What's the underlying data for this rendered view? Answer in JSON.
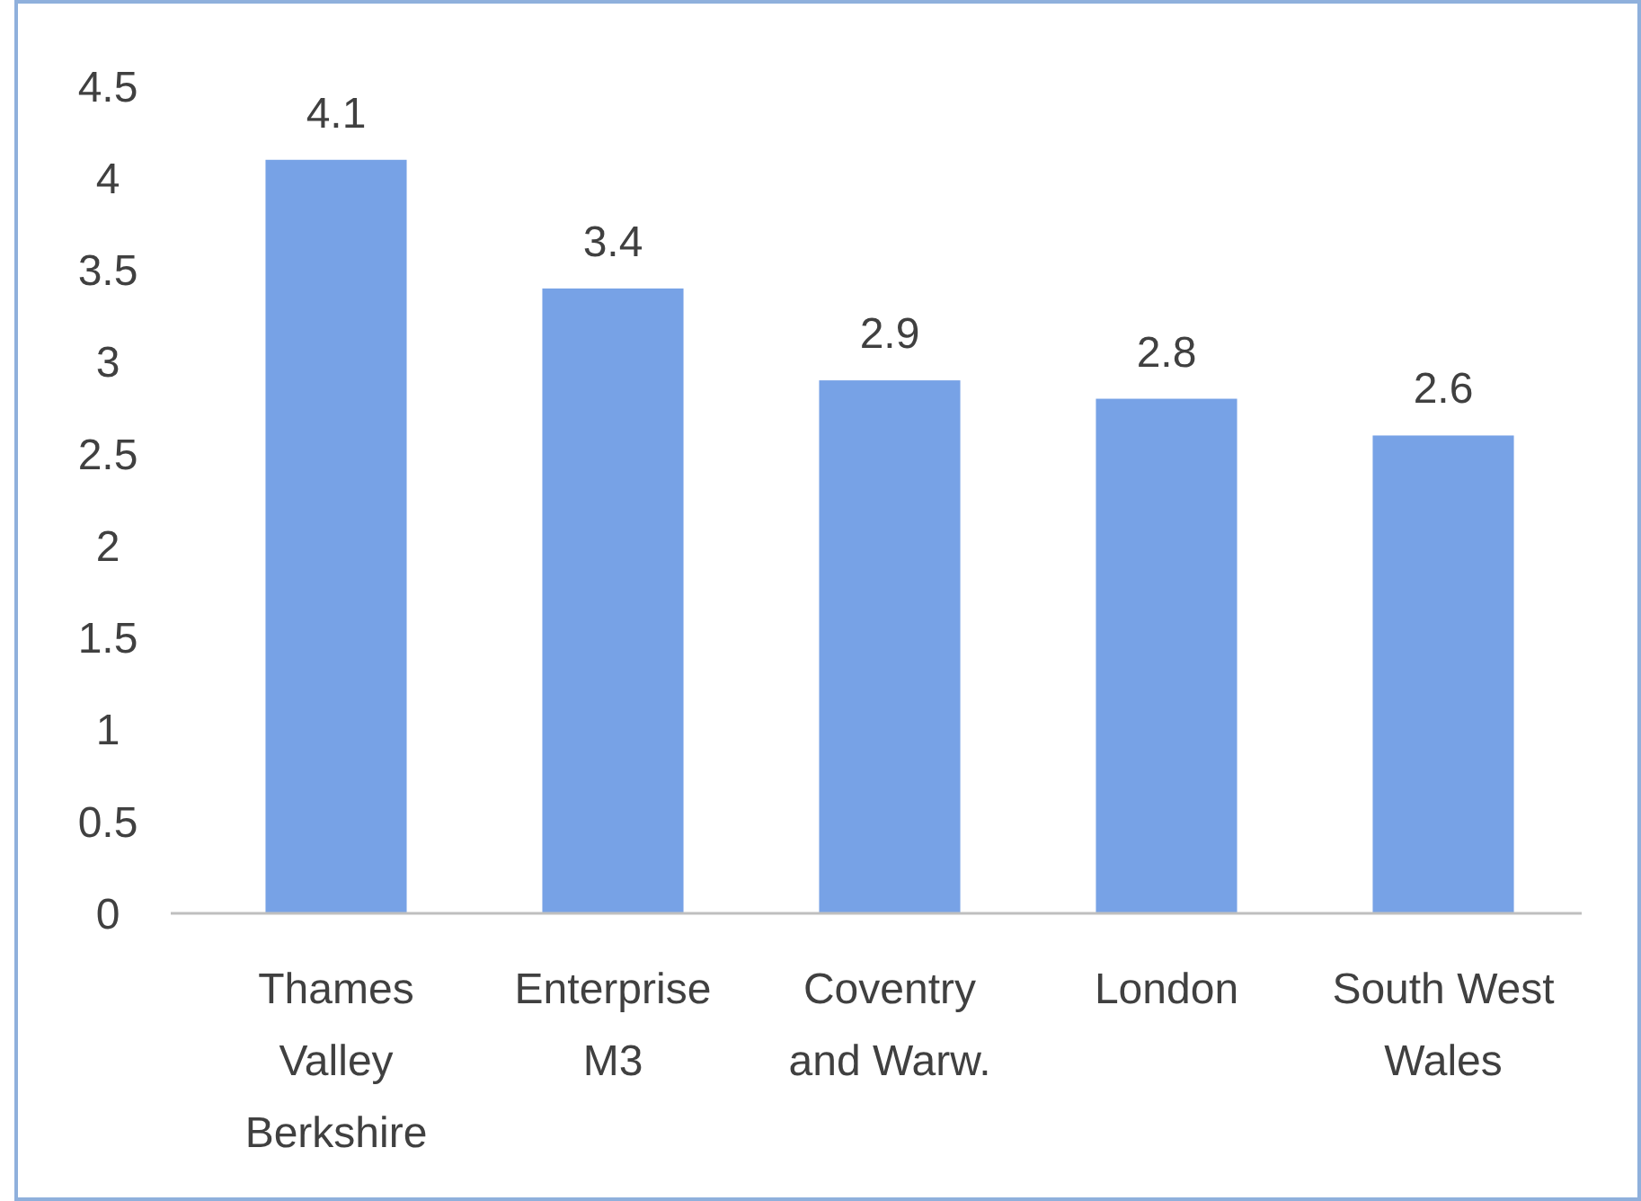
{
  "chart_data": {
    "type": "bar",
    "categories": [
      "Thames Valley Berkshire",
      "Enterprise M3",
      "Coventry and Warw.",
      "London",
      "South West Wales"
    ],
    "values": [
      4.1,
      3.4,
      2.9,
      2.8,
      2.6
    ],
    "color": "#77a2e6",
    "ylim": [
      0,
      4.5
    ],
    "yticks": [
      0,
      0.5,
      1,
      1.5,
      2,
      2.5,
      3,
      3.5,
      4,
      4.5
    ],
    "grid": false,
    "data_labels": true
  }
}
